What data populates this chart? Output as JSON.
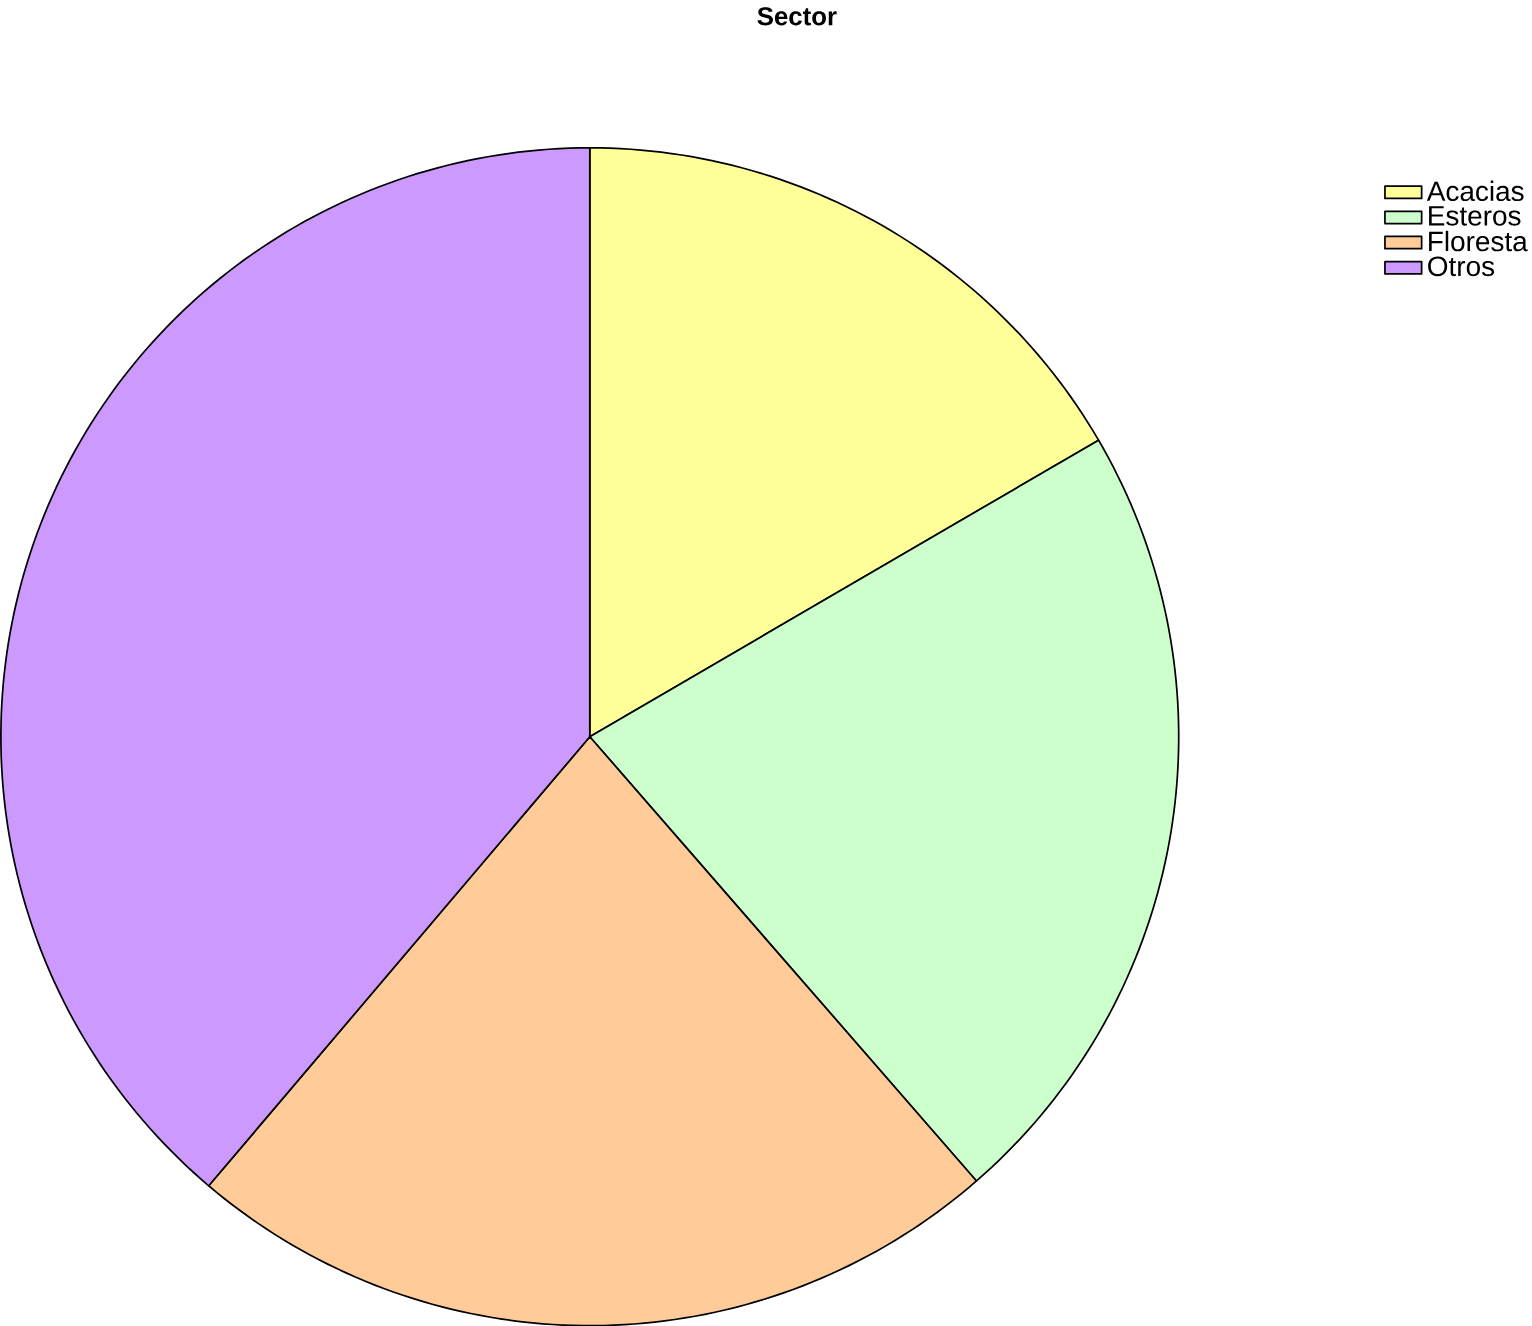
{
  "chart_data": {
    "type": "pie",
    "title": "Sector",
    "categories": [
      "Acacias",
      "Esteros",
      "Floresta",
      "Otros"
    ],
    "values": [
      16.6,
      22.0,
      22.6,
      38.8
    ],
    "colors": [
      "#ffff99",
      "#ccffcc",
      "#ffcc99",
      "#cc99ff"
    ],
    "legend": "top right"
  }
}
